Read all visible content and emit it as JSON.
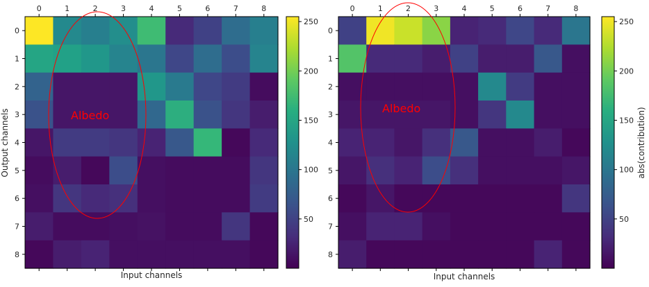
{
  "figure": {
    "panels": [
      "left-heatmap",
      "right-heatmap"
    ]
  },
  "chart_data": [
    {
      "type": "heatmap",
      "xlabel": "Input channels",
      "ylabel": "Output channels",
      "x_ticks": [
        "0",
        "1",
        "2",
        "3",
        "4",
        "5",
        "6",
        "7",
        "8"
      ],
      "y_ticks": [
        "0",
        "1",
        "2",
        "3",
        "4",
        "5",
        "6",
        "7",
        "8"
      ],
      "colormap": "viridis",
      "colorbar": {
        "label": "",
        "ticks": [
          "50",
          "100",
          "150",
          "200",
          "250"
        ],
        "range": [
          0,
          255
        ]
      },
      "annotation": {
        "text": "Albedo",
        "color": "#ff0000",
        "shape": "ellipse"
      },
      "values": [
        [
          255,
          120,
          110,
          125,
          175,
          30,
          50,
          90,
          110
        ],
        [
          150,
          145,
          135,
          115,
          100,
          55,
          90,
          60,
          115
        ],
        [
          80,
          15,
          15,
          15,
          135,
          105,
          55,
          45,
          8
        ],
        [
          65,
          15,
          15,
          15,
          85,
          160,
          65,
          40,
          20
        ],
        [
          15,
          45,
          45,
          40,
          25,
          70,
          170,
          5,
          30
        ],
        [
          8,
          20,
          5,
          60,
          10,
          8,
          8,
          8,
          40
        ],
        [
          10,
          40,
          30,
          35,
          10,
          8,
          8,
          8,
          45
        ],
        [
          20,
          8,
          8,
          10,
          12,
          8,
          8,
          40,
          5
        ],
        [
          5,
          20,
          25,
          10,
          10,
          10,
          10,
          10,
          5
        ]
      ]
    },
    {
      "type": "heatmap",
      "xlabel": "Input channels",
      "ylabel": "",
      "x_ticks": [
        "0",
        "1",
        "2",
        "3",
        "4",
        "5",
        "6",
        "7",
        "8"
      ],
      "y_ticks": [
        "0",
        "1",
        "2",
        "3",
        "4",
        "5",
        "6",
        "7",
        "8"
      ],
      "colormap": "viridis",
      "colorbar": {
        "label": "abs(contribution)",
        "ticks": [
          "50",
          "100",
          "150",
          "200",
          "250"
        ],
        "range": [
          0,
          255
        ]
      },
      "annotation": {
        "text": "Albedo",
        "color": "#ff0000",
        "shape": "ellipse"
      },
      "values": [
        [
          50,
          250,
          235,
          210,
          25,
          30,
          55,
          30,
          100
        ],
        [
          185,
          30,
          30,
          20,
          50,
          20,
          20,
          70,
          10
        ],
        [
          10,
          10,
          10,
          10,
          10,
          120,
          45,
          10,
          10
        ],
        [
          15,
          15,
          15,
          15,
          10,
          40,
          120,
          10,
          10
        ],
        [
          25,
          25,
          15,
          35,
          70,
          10,
          10,
          20,
          5
        ],
        [
          15,
          35,
          25,
          60,
          35,
          10,
          10,
          10,
          15
        ],
        [
          5,
          15,
          5,
          5,
          5,
          5,
          5,
          5,
          40
        ],
        [
          10,
          25,
          25,
          10,
          5,
          5,
          5,
          5,
          5
        ],
        [
          20,
          5,
          5,
          5,
          5,
          5,
          5,
          25,
          5
        ]
      ]
    }
  ]
}
